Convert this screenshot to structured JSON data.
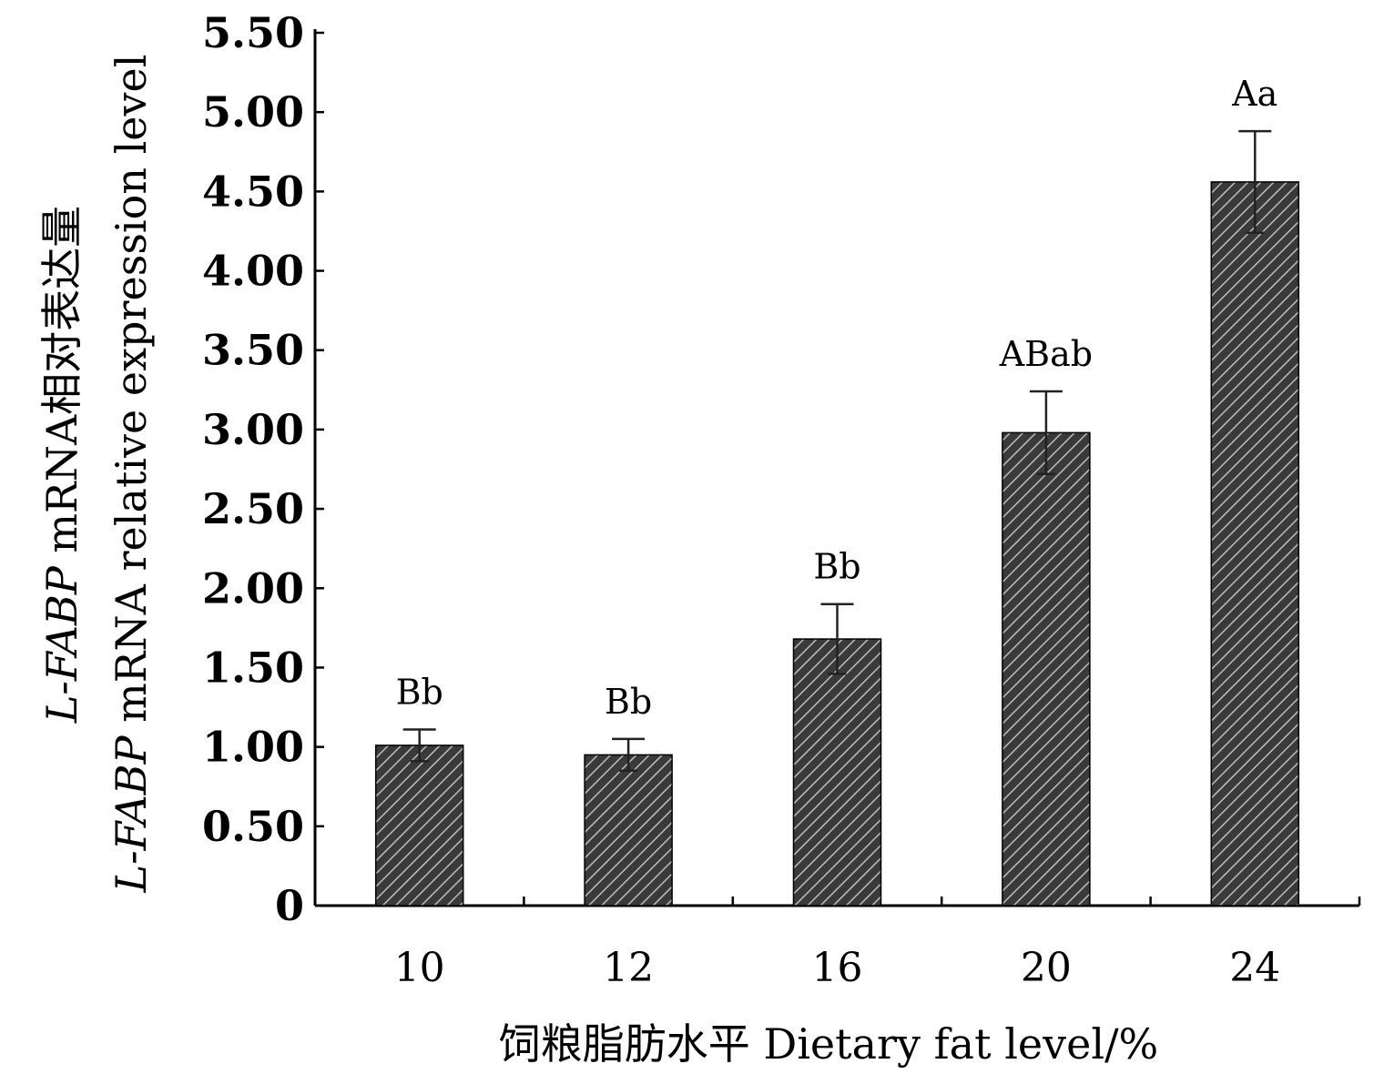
{
  "chart_data": {
    "type": "bar",
    "categories": [
      "10",
      "12",
      "16",
      "20",
      "24"
    ],
    "values": [
      1.01,
      0.95,
      1.68,
      2.98,
      4.56
    ],
    "error": [
      0.1,
      0.1,
      0.22,
      0.26,
      0.32
    ],
    "significance_labels": [
      "Bb",
      "Bb",
      "Bb",
      "ABab",
      "Aa"
    ],
    "ylim": [
      0,
      5.5
    ],
    "yticks": [
      "0",
      "0.50",
      "1.00",
      "1.50",
      "2.00",
      "2.50",
      "3.00",
      "3.50",
      "4.00",
      "4.50",
      "5.00",
      "5.50"
    ],
    "ytick_values": [
      0,
      0.5,
      1.0,
      1.5,
      2.0,
      2.5,
      3.0,
      3.5,
      4.0,
      4.5,
      5.0,
      5.5
    ],
    "xlabel": "饲粮脂肪水平  Dietary fat level/%",
    "ylabel_cn_italic": "L-FABP",
    "ylabel_cn_rest": " mRNA相对表达量",
    "ylabel_en_italic": "L-FABP",
    "ylabel_en_rest": " mRNA relative expression level",
    "bar_fill": "hatched dark gray",
    "colors": {
      "bar_dark": "#3a3a3a",
      "bar_hatch": "#bdbdbd",
      "axis": "#000000"
    }
  }
}
